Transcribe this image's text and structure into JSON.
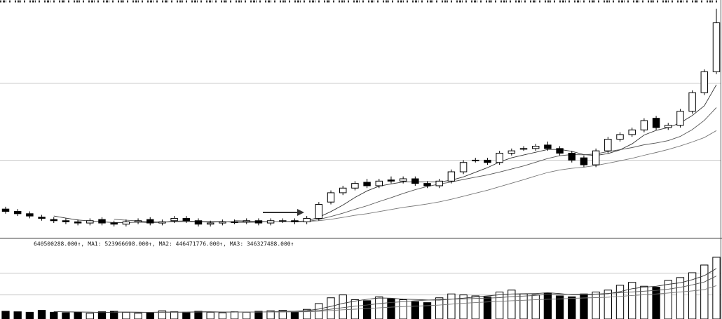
{
  "chart_data": [
    {
      "type": "candlestick",
      "open": [
        12,
        11,
        10,
        8.5,
        7.5,
        7,
        6.5,
        6,
        7.5,
        6,
        5.5,
        6.5,
        7.5,
        6,
        7,
        8,
        7,
        5.5,
        6,
        6.5,
        6.5,
        7,
        6,
        7,
        7,
        6.5,
        8,
        15,
        19,
        21,
        23.5,
        22,
        24.5,
        24,
        25,
        23,
        22,
        24,
        28,
        33,
        33,
        32,
        36,
        38,
        38,
        39.5,
        38,
        36,
        34,
        31,
        37,
        42,
        44,
        46,
        51,
        47,
        48,
        54,
        62,
        71
      ],
      "high": [
        13,
        12,
        11,
        9.5,
        8.5,
        8,
        7.5,
        8,
        8.5,
        7,
        7.5,
        8,
        8.5,
        7.5,
        9,
        9,
        8,
        7,
        7.5,
        7.5,
        8,
        8,
        8,
        8,
        8,
        9,
        15,
        20,
        22,
        24,
        25,
        25,
        26,
        26,
        26,
        24,
        25,
        29,
        33,
        34,
        34,
        37,
        38,
        39,
        40,
        41,
        39,
        37,
        35,
        38,
        43,
        45,
        47,
        51,
        52,
        49,
        55,
        63,
        72,
        98
      ],
      "low": [
        10,
        9,
        8,
        7,
        6,
        5.5,
        5,
        5,
        5,
        4.5,
        4.5,
        5.5,
        5,
        5,
        6,
        6,
        4.5,
        4.5,
        5,
        5.5,
        5.5,
        5,
        5,
        6,
        5.5,
        5.5,
        7,
        14,
        18,
        20,
        21,
        21,
        23,
        23,
        22,
        21,
        21,
        23,
        27,
        32,
        31,
        31,
        35,
        37,
        37,
        37,
        35,
        32,
        30,
        30,
        36,
        41,
        43,
        45,
        46,
        46,
        47,
        53,
        61,
        70
      ],
      "close": [
        11,
        10,
        9,
        8,
        7,
        6.5,
        6,
        7,
        6,
        5.5,
        6.5,
        7,
        6,
        6.5,
        8,
        7,
        5.5,
        6,
        6.5,
        6.5,
        7,
        6,
        7,
        7,
        6.5,
        8,
        14,
        19,
        21,
        23,
        22,
        24,
        24,
        25,
        23,
        22,
        24,
        28,
        32,
        33,
        32,
        36,
        37,
        38,
        39,
        38,
        36,
        33,
        31,
        37,
        42,
        44,
        46,
        50,
        47,
        48,
        54,
        62,
        71,
        92
      ],
      "up_color": "#ffffff",
      "down_color": "#000000",
      "ylim": [
        0,
        100
      ],
      "yticks": [
        33,
        66
      ],
      "grid": true,
      "series": [
        {
          "color": "#333333",
          "values": [
            null,
            null,
            null,
            null,
            9,
            8.1,
            7.3,
            6.9,
            6.5,
            6.2,
            6.2,
            6.4,
            6.2,
            6.3,
            6.8,
            6.9,
            6.6,
            6.6,
            6.6,
            6.3,
            6.3,
            6.4,
            6.6,
            6.7,
            6.7,
            6.9,
            8.5,
            10.9,
            13.7,
            17,
            19.8,
            21.8,
            22.8,
            23.6,
            23.6,
            23.6,
            23.6,
            24.4,
            25.8,
            27.8,
            29.8,
            32.2,
            34,
            35.2,
            36.4,
            37.6,
            37.6,
            36.8,
            35.4,
            35,
            35.8,
            37.4,
            40,
            43.8,
            45.8,
            47,
            49,
            52.2,
            56.4,
            65.4
          ]
        },
        {
          "color": "#555555",
          "values": [
            null,
            null,
            null,
            null,
            null,
            null,
            null,
            null,
            null,
            7.6,
            7.2,
            6.9,
            6.6,
            6.4,
            6.5,
            6.6,
            6.5,
            6.4,
            6.5,
            6.6,
            6.6,
            6.5,
            6.6,
            6.7,
            6.5,
            6.6,
            7.5,
            8.8,
            10.2,
            11.9,
            13.4,
            15.2,
            16.9,
            18.7,
            20.3,
            21.7,
            22.7,
            23.6,
            24.7,
            25.7,
            26.7,
            27.9,
            29.2,
            30.5,
            32.1,
            33.7,
            34.9,
            35.4,
            35.3,
            35.7,
            36.7,
            37.5,
            38.4,
            39.6,
            40.4,
            41.4,
            43.2,
            46.1,
            50.1,
            55.6
          ]
        },
        {
          "color": "#777777",
          "values": [
            null,
            null,
            null,
            null,
            null,
            null,
            null,
            null,
            null,
            null,
            null,
            null,
            null,
            null,
            null,
            null,
            null,
            null,
            null,
            7.1,
            6.9,
            6.7,
            6.6,
            6.6,
            6.5,
            6.6,
            7,
            7.6,
            8.4,
            9.3,
            10,
            10.9,
            11.8,
            12.7,
            13.4,
            14.2,
            15.1,
            16.2,
            17.5,
            18.8,
            20.1,
            21.6,
            23.1,
            24.6,
            26.2,
            27.7,
            28.8,
            29.5,
            30,
            30.7,
            31.7,
            32.7,
            33.8,
            35.1,
            36.3,
            37.6,
            39.1,
            40.8,
            42.7,
            45.7
          ]
        }
      ]
    },
    {
      "type": "bar",
      "values": [
        80000000,
        75000000,
        70000000,
        90000000,
        70000000,
        65000000,
        70000000,
        60000000,
        75000000,
        80000000,
        70000000,
        60000000,
        65000000,
        85000000,
        75000000,
        70000000,
        80000000,
        70000000,
        65000000,
        75000000,
        70000000,
        80000000,
        85000000,
        90000000,
        80000000,
        100000000,
        160000000,
        220000000,
        250000000,
        200000000,
        190000000,
        230000000,
        210000000,
        200000000,
        180000000,
        170000000,
        220000000,
        260000000,
        250000000,
        240000000,
        230000000,
        280000000,
        300000000,
        260000000,
        250000000,
        270000000,
        240000000,
        230000000,
        260000000,
        280000000,
        300000000,
        350000000,
        380000000,
        340000000,
        330000000,
        400000000,
        430000000,
        480000000,
        560000000,
        640500288
      ],
      "ylim": [
        0,
        720000000
      ],
      "yticks": [
        250000000,
        475000000
      ],
      "grid": true,
      "legend_labels": [
        "640500288.000↑,",
        "MA1: 523966698.000↑,",
        "MA2: 446471776.000↑,",
        "MA3: 346327488.000↑"
      ],
      "series": [
        {
          "color": "#333333",
          "values": [
            null,
            null,
            null,
            null,
            77000000,
            74000000,
            73000000,
            71000000,
            68000000,
            70000000,
            71000000,
            69000000,
            70000000,
            72000000,
            71000000,
            71000000,
            75000000,
            76000000,
            72000000,
            72000000,
            72000000,
            72000000,
            75000000,
            81000000,
            81000000,
            87000000,
            103000000,
            130000000,
            162000000,
            186000000,
            204000000,
            218000000,
            216000000,
            206000000,
            202000000,
            198000000,
            196000000,
            206000000,
            216000000,
            228000000,
            240000000,
            252000000,
            260000000,
            262000000,
            264000000,
            272000000,
            264000000,
            250000000,
            250000000,
            256000000,
            262000000,
            284000000,
            314000000,
            330000000,
            340000000,
            360000000,
            376000000,
            408000000,
            450000000,
            523966698
          ]
        },
        {
          "color": "#555555",
          "values": [
            null,
            null,
            null,
            null,
            null,
            null,
            null,
            null,
            null,
            73000000,
            72000000,
            71000000,
            70000000,
            70000000,
            71000000,
            70000000,
            72000000,
            73000000,
            71000000,
            71000000,
            71000000,
            73000000,
            75000000,
            76000000,
            76000000,
            79000000,
            88000000,
            102000000,
            118000000,
            133000000,
            145000000,
            160000000,
            172000000,
            180000000,
            190000000,
            196000000,
            202000000,
            206000000,
            209000000,
            213000000,
            217000000,
            222000000,
            232000000,
            238000000,
            245000000,
            255000000,
            257000000,
            254000000,
            255000000,
            259000000,
            266000000,
            273000000,
            281000000,
            289000000,
            297000000,
            310000000,
            329000000,
            354000000,
            384000000,
            446471776
          ]
        },
        {
          "color": "#777777",
          "values": [
            null,
            null,
            null,
            null,
            null,
            null,
            null,
            null,
            null,
            null,
            null,
            null,
            null,
            null,
            null,
            null,
            null,
            null,
            null,
            72000000,
            71000000,
            72000000,
            73000000,
            73000000,
            74000000,
            75000000,
            80000000,
            88000000,
            96000000,
            102000000,
            108000000,
            116000000,
            123000000,
            129000000,
            133000000,
            138000000,
            145000000,
            154000000,
            163000000,
            170000000,
            177000000,
            183000000,
            190000000,
            194000000,
            200000000,
            205000000,
            209000000,
            214000000,
            218000000,
            222000000,
            226000000,
            234000000,
            244000000,
            252000000,
            260000000,
            270000000,
            281000000,
            292000000,
            305000000,
            346327488
          ]
        }
      ]
    }
  ]
}
